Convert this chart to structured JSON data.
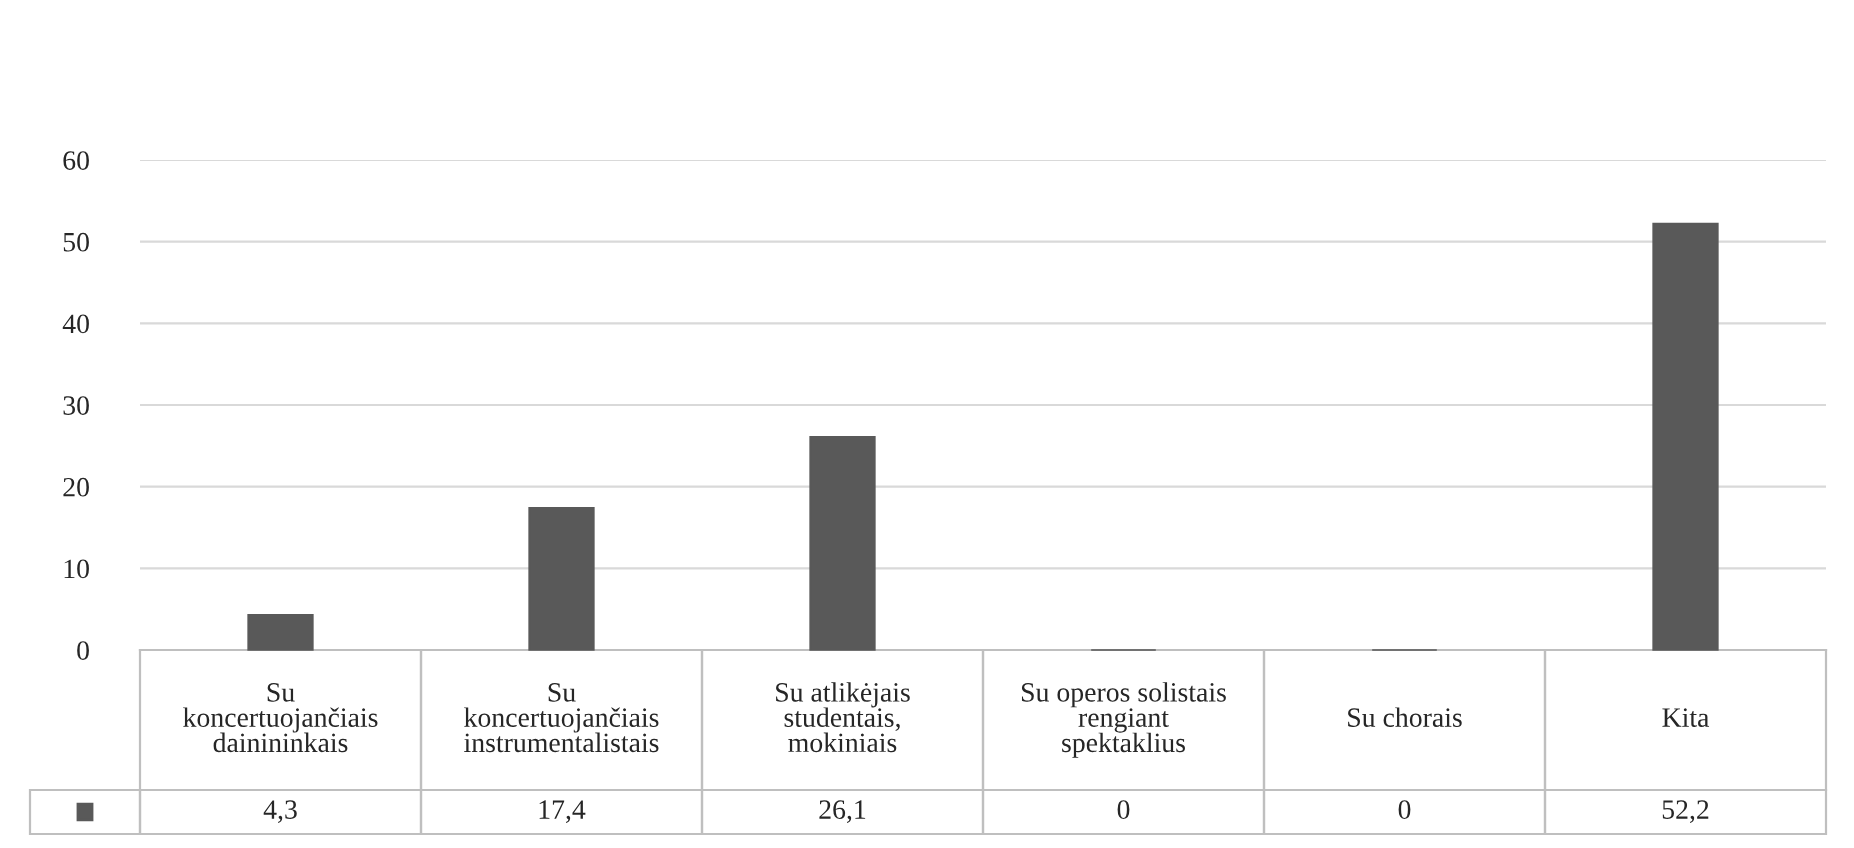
{
  "chart_data": {
    "type": "bar",
    "categories": [
      "Su\nkoncertuojančiais\ndainininkais",
      "Su\nkoncertuojančiais\ninstrumentalistais",
      "Su atlikėjais\nstudentais,\nmokiniais",
      "Su operos solistais\nrengiant\nspektaklius",
      "Su chorais",
      "Kita"
    ],
    "series": [
      {
        "color": "#595959",
        "values": [
          4.3,
          17.4,
          26.1,
          0,
          0,
          52.2
        ],
        "value_labels": [
          "4,3",
          "17,4",
          "26,1",
          "0",
          "0",
          "52,2"
        ]
      }
    ],
    "ylim": [
      0,
      60
    ],
    "yticks": [
      0,
      10,
      20,
      30,
      40,
      50,
      60
    ],
    "grid": "y"
  }
}
